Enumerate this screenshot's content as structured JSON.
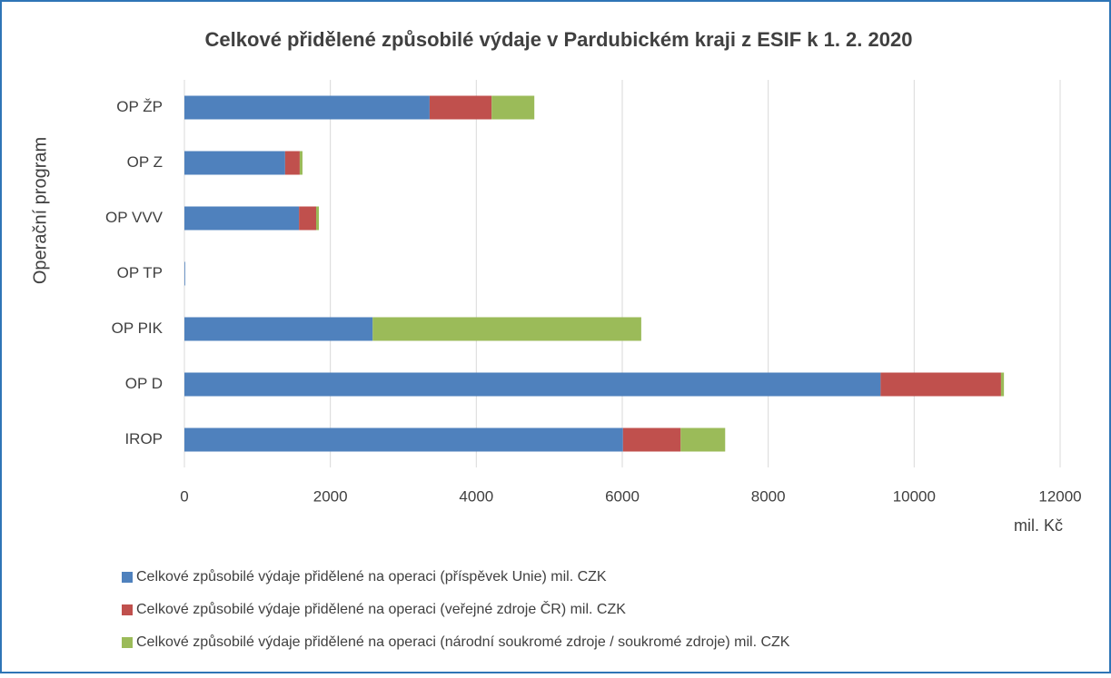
{
  "chart_data": {
    "type": "stacked_barh",
    "title": "Celkové přidělené způsobilé výdaje v Pardubickém kraji  z ESIF k 1. 2. 2020",
    "y_label": "Operační program",
    "x_label": "mil. Kč",
    "categories": [
      "IROP",
      "OP D",
      "OP PIK",
      "OP TP",
      "OP VVV",
      "OP Z",
      "OP ŽP"
    ],
    "series": [
      {
        "name": "Celkové způsobilé výdaje přidělené na operaci (příspěvek Unie) mil. CZK",
        "color": "#4f81bd",
        "values": [
          6010,
          9540,
          2580,
          10,
          1570,
          1380,
          3360
        ]
      },
      {
        "name": "Celkové způsobilé výdaje přidělené na operaci (veřejné zdroje ČR) mil. CZK",
        "color": "#c0504d",
        "values": [
          790,
          1650,
          0,
          0,
          235,
          200,
          850
        ]
      },
      {
        "name": "Celkové způsobilé výdaje přidělené na operaci (národní soukromé zdroje / soukromé zdroje) mil. CZK",
        "color": "#9bbb59",
        "values": [
          610,
          40,
          3680,
          0,
          38,
          38,
          585
        ]
      }
    ],
    "xlim": [
      0,
      12000
    ],
    "xticks": [
      0,
      2000,
      4000,
      6000,
      8000,
      10000,
      12000
    ],
    "grid": true,
    "legend": "bottom"
  }
}
